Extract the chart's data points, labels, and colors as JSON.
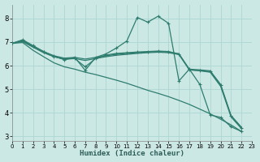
{
  "xlabel": "Humidex (Indice chaleur)",
  "background_color": "#cce8e5",
  "grid_color": "#b0d8d5",
  "line_color": "#2e7d6e",
  "xlim": [
    0,
    23
  ],
  "ylim": [
    2.8,
    8.6
  ],
  "yticks": [
    3,
    4,
    5,
    6,
    7,
    8
  ],
  "xticks": [
    0,
    1,
    2,
    3,
    4,
    5,
    6,
    7,
    8,
    9,
    10,
    11,
    12,
    13,
    14,
    15,
    16,
    17,
    18,
    19,
    20,
    21,
    22,
    23
  ],
  "lines": [
    {
      "x": [
        0,
        1,
        2,
        3,
        4,
        5,
        6,
        7,
        8,
        9,
        10,
        11,
        12,
        13,
        14,
        15,
        16,
        17,
        18,
        19,
        20,
        21,
        22
      ],
      "y": [
        6.95,
        7.1,
        6.85,
        6.6,
        6.4,
        6.25,
        6.35,
        5.8,
        6.35,
        6.5,
        6.75,
        7.05,
        8.05,
        7.85,
        8.1,
        7.8,
        5.35,
        5.85,
        5.2,
        3.9,
        3.8,
        3.4,
        3.2
      ],
      "marker": true
    },
    {
      "x": [
        0,
        1,
        2,
        3,
        4,
        5,
        6,
        7,
        8,
        9,
        10,
        11,
        12,
        13,
        14,
        15,
        16,
        17,
        18,
        19,
        20,
        21,
        22
      ],
      "y": [
        6.95,
        7.05,
        6.82,
        6.6,
        6.42,
        6.32,
        6.35,
        6.28,
        6.35,
        6.42,
        6.48,
        6.52,
        6.55,
        6.58,
        6.6,
        6.58,
        6.5,
        5.85,
        5.82,
        5.78,
        5.2,
        3.88,
        3.38
      ],
      "marker": false
    },
    {
      "x": [
        0,
        1,
        2,
        3,
        4,
        5,
        6,
        7,
        8,
        9,
        10,
        11,
        12,
        13,
        14,
        15,
        16,
        17,
        18,
        19,
        20,
        21,
        22
      ],
      "y": [
        6.95,
        7.02,
        6.78,
        6.55,
        6.38,
        6.28,
        6.3,
        6.22,
        6.3,
        6.38,
        6.44,
        6.48,
        6.52,
        6.55,
        6.57,
        6.55,
        6.47,
        5.82,
        5.78,
        5.72,
        5.12,
        3.82,
        3.32
      ],
      "marker": false
    },
    {
      "x": [
        0,
        1,
        2,
        3,
        4,
        5,
        6,
        7,
        8,
        9,
        10,
        11,
        12,
        13,
        14,
        15,
        16,
        17,
        18,
        19,
        20,
        21,
        22
      ],
      "y": [
        6.95,
        7.08,
        6.82,
        6.58,
        6.38,
        6.28,
        6.3,
        5.95,
        6.3,
        6.45,
        6.52,
        6.55,
        6.58,
        6.6,
        6.62,
        6.6,
        6.5,
        5.82,
        5.79,
        5.75,
        5.18,
        3.85,
        3.35
      ],
      "marker": true
    },
    {
      "x": [
        0,
        1,
        2,
        3,
        4,
        5,
        6,
        7,
        8,
        9,
        10,
        11,
        12,
        13,
        14,
        15,
        16,
        17,
        18,
        19,
        20,
        21,
        22
      ],
      "y": [
        6.95,
        6.98,
        6.65,
        6.38,
        6.12,
        5.95,
        5.85,
        5.72,
        5.62,
        5.5,
        5.38,
        5.25,
        5.1,
        4.95,
        4.82,
        4.68,
        4.52,
        4.35,
        4.15,
        3.95,
        3.72,
        3.48,
        3.2
      ],
      "marker": false
    }
  ]
}
